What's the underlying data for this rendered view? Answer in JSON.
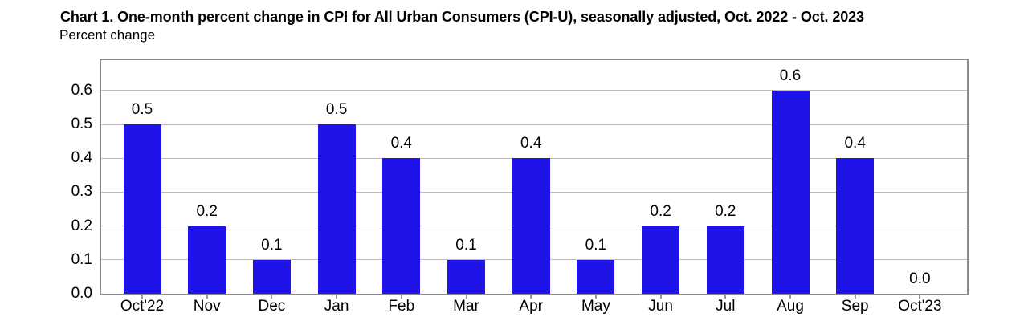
{
  "header": {
    "title": "Chart 1. One-month percent change in CPI for All Urban Consumers (CPI-U), seasonally adjusted, Oct. 2022 - Oct. 2023",
    "subtitle": "Percent change"
  },
  "colors": {
    "bar": "#2013e9",
    "grid": "#bdbdbd",
    "frame": "#8b8b8b",
    "tick": "#9a9a9a",
    "text": "#000000",
    "background": "#ffffff"
  },
  "chart_data": {
    "type": "bar",
    "title": "Chart 1. One-month percent change in CPI for All Urban Consumers (CPI-U), seasonally adjusted, Oct. 2022 - Oct. 2023",
    "ylabel": "Percent change",
    "xlabel": "",
    "categories": [
      "Oct'22",
      "Nov",
      "Dec",
      "Jan",
      "Feb",
      "Mar",
      "Apr",
      "May",
      "Jun",
      "Jul",
      "Aug",
      "Sep",
      "Oct'23"
    ],
    "values": [
      0.5,
      0.2,
      0.1,
      0.5,
      0.4,
      0.1,
      0.4,
      0.1,
      0.2,
      0.2,
      0.6,
      0.4,
      0.0
    ],
    "ylim": [
      0,
      0.69
    ],
    "yticks": [
      0.0,
      0.1,
      0.2,
      0.3,
      0.4,
      0.5,
      0.6
    ],
    "grid": true,
    "legend": false,
    "data_labels": true,
    "value_label_decimals": 1
  }
}
